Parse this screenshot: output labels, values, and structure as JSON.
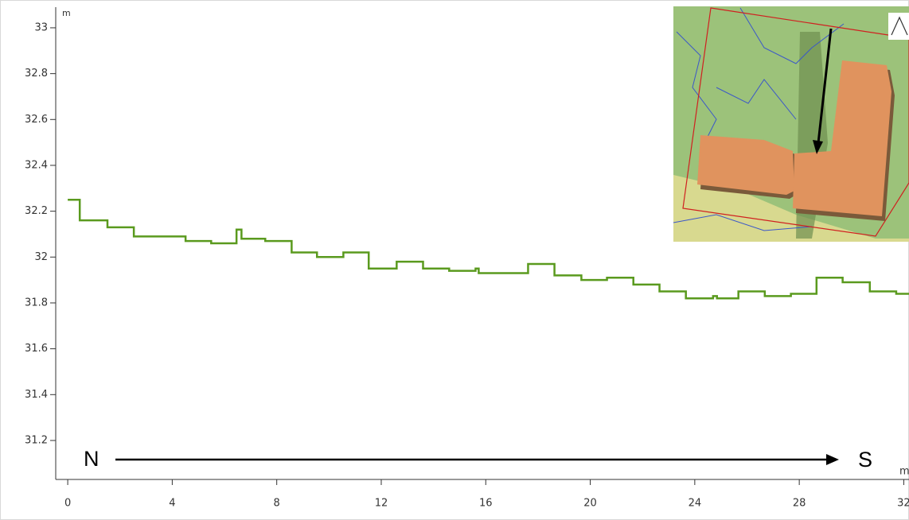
{
  "chart_data": {
    "type": "line",
    "y_unit": "m",
    "x_unit": "m",
    "start_label": "N",
    "end_label": "S",
    "x": [
      0,
      0.46,
      0.46,
      1.52,
      1.52,
      2.53,
      2.53,
      4.51,
      4.51,
      5.49,
      5.49,
      6.46,
      6.46,
      6.65,
      6.65,
      7.56,
      7.56,
      8.57,
      8.57,
      9.54,
      9.54,
      10.55,
      10.55,
      11.52,
      11.52,
      12.59,
      12.59,
      13.6,
      13.6,
      14.6,
      14.6,
      15.61,
      15.61,
      15.73,
      15.73,
      17.62,
      17.62,
      18.63,
      18.63,
      19.66,
      19.66,
      20.64,
      20.64,
      21.65,
      21.65,
      22.65,
      22.65,
      23.66,
      23.66,
      24.7,
      24.7,
      24.85,
      24.85,
      25.67,
      25.67,
      26.68,
      26.68,
      27.68,
      27.68,
      28.66,
      28.66,
      29.66,
      29.66,
      30.7,
      30.7,
      31.71,
      31.71,
      32.2
    ],
    "values": [
      32.25,
      32.25,
      32.16,
      32.16,
      32.13,
      32.13,
      32.09,
      32.09,
      32.07,
      32.07,
      32.06,
      32.06,
      32.12,
      32.12,
      32.08,
      32.08,
      32.07,
      32.07,
      32.02,
      32.02,
      32,
      32,
      32.02,
      32.02,
      31.95,
      31.95,
      31.98,
      31.98,
      31.95,
      31.95,
      31.94,
      31.94,
      31.95,
      31.95,
      31.93,
      31.93,
      31.97,
      31.97,
      31.92,
      31.92,
      31.9,
      31.9,
      31.91,
      31.91,
      31.88,
      31.88,
      31.85,
      31.85,
      31.82,
      31.82,
      31.83,
      31.83,
      31.82,
      31.82,
      31.85,
      31.85,
      31.83,
      31.83,
      31.84,
      31.84,
      31.91,
      31.91,
      31.89,
      31.89,
      31.85,
      31.85,
      31.84,
      31.84
    ],
    "color": "#5a9a1e",
    "xlim": [
      -0.46,
      32.2
    ],
    "xticks": [
      0,
      4,
      8,
      12,
      16,
      20,
      24,
      28,
      32
    ],
    "ylim": [
      31.03,
      33.09
    ],
    "yticks": [
      31.2,
      31.4,
      31.6,
      31.8,
      32,
      32.2,
      32.4,
      32.6,
      32.8,
      33
    ],
    "grid": false
  }
}
